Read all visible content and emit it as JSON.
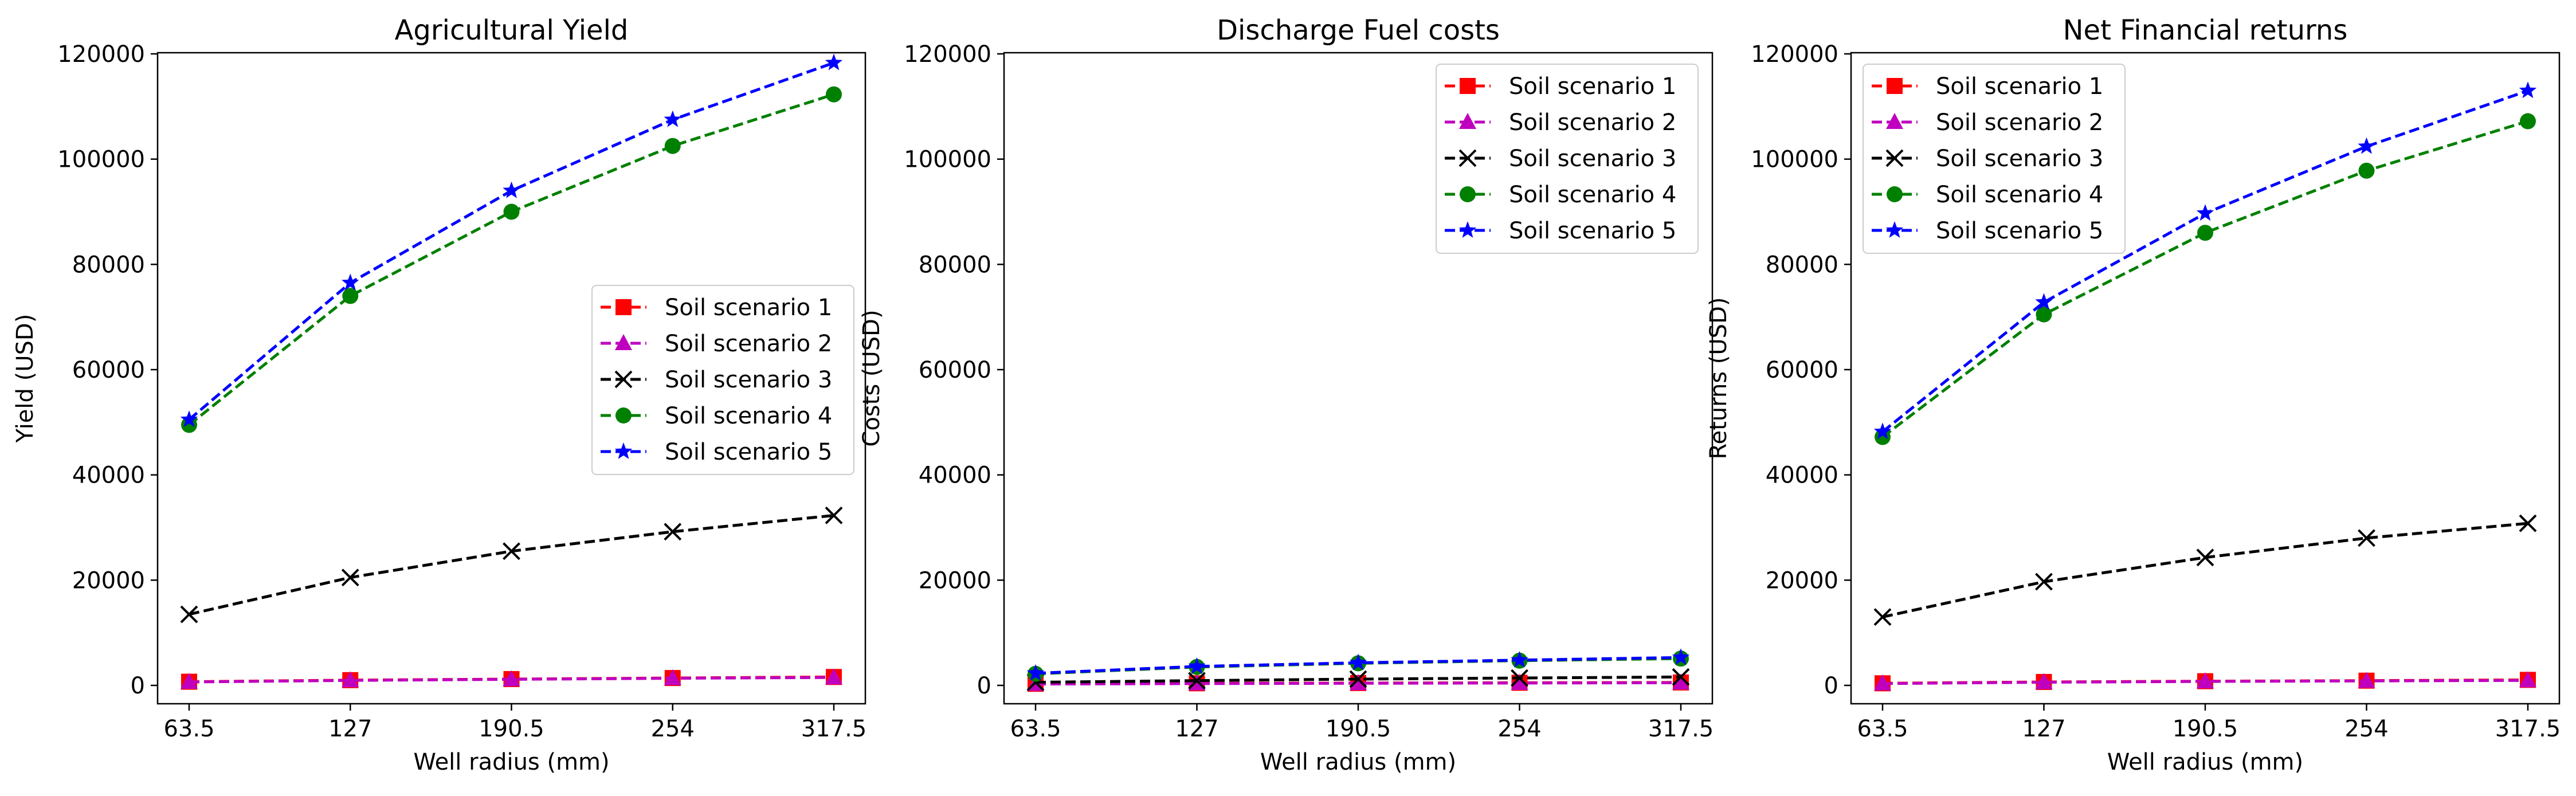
{
  "chart_data": [
    {
      "type": "line",
      "title": "Agricultural Yield",
      "xlabel": "Well radius (mm)",
      "ylabel": "Yield (USD)",
      "categories": [
        "63.5",
        "127",
        "190.5",
        "254",
        "317.5"
      ],
      "ylim": [
        0,
        120000
      ],
      "yticks": [
        "0",
        "20000",
        "40000",
        "60000",
        "80000",
        "100000",
        "120000"
      ],
      "legend_position": "center-right",
      "series": [
        {
          "name": "Soil scenario 1",
          "color": "#ff0000",
          "marker": "square",
          "values": [
            700,
            1000,
            1200,
            1400,
            1600
          ]
        },
        {
          "name": "Soil scenario 2",
          "color": "#bf00bf",
          "marker": "triangle",
          "values": [
            650,
            950,
            1150,
            1350,
            1500
          ]
        },
        {
          "name": "Soil scenario 3",
          "color": "#000000",
          "marker": "x",
          "values": [
            13500,
            20500,
            25500,
            29200,
            32300
          ]
        },
        {
          "name": "Soil scenario 4",
          "color": "#008000",
          "marker": "circle",
          "values": [
            49500,
            74000,
            90000,
            102500,
            112300
          ]
        },
        {
          "name": "Soil scenario 5",
          "color": "#0000ff",
          "marker": "star",
          "values": [
            50500,
            76500,
            94000,
            107500,
            118300
          ]
        }
      ]
    },
    {
      "type": "line",
      "title": "Discharge Fuel costs",
      "xlabel": "Well radius (mm)",
      "ylabel": "Costs (USD)",
      "categories": [
        "63.5",
        "127",
        "190.5",
        "254",
        "317.5"
      ],
      "ylim": [
        0,
        120000
      ],
      "yticks": [
        "0",
        "20000",
        "40000",
        "60000",
        "80000",
        "100000",
        "120000"
      ],
      "legend_position": "top-right",
      "series": [
        {
          "name": "Soil scenario 1",
          "color": "#ff0000",
          "marker": "square",
          "values": [
            300,
            400,
            450,
            500,
            550
          ]
        },
        {
          "name": "Soil scenario 2",
          "color": "#bf00bf",
          "marker": "triangle",
          "values": [
            250,
            350,
            400,
            450,
            500
          ]
        },
        {
          "name": "Soil scenario 3",
          "color": "#000000",
          "marker": "x",
          "values": [
            600,
            900,
            1200,
            1400,
            1600
          ]
        },
        {
          "name": "Soil scenario 4",
          "color": "#008000",
          "marker": "circle",
          "values": [
            2200,
            3500,
            4200,
            4700,
            5100
          ]
        },
        {
          "name": "Soil scenario 5",
          "color": "#0000ff",
          "marker": "star",
          "values": [
            2300,
            3600,
            4300,
            4800,
            5300
          ]
        }
      ]
    },
    {
      "type": "line",
      "title": "Net Financial returns",
      "xlabel": "Well radius (mm)",
      "ylabel": "Returns (USD)",
      "categories": [
        "63.5",
        "127",
        "190.5",
        "254",
        "317.5"
      ],
      "ylim": [
        0,
        120000
      ],
      "yticks": [
        "0",
        "20000",
        "40000",
        "60000",
        "80000",
        "100000",
        "120000"
      ],
      "legend_position": "top-left",
      "series": [
        {
          "name": "Soil scenario 1",
          "color": "#ff0000",
          "marker": "square",
          "values": [
            400,
            650,
            800,
            900,
            1050
          ]
        },
        {
          "name": "Soil scenario 2",
          "color": "#bf00bf",
          "marker": "triangle",
          "values": [
            350,
            600,
            750,
            850,
            950
          ]
        },
        {
          "name": "Soil scenario 3",
          "color": "#000000",
          "marker": "x",
          "values": [
            13000,
            19700,
            24300,
            28000,
            30800
          ]
        },
        {
          "name": "Soil scenario 4",
          "color": "#008000",
          "marker": "circle",
          "values": [
            47200,
            70500,
            86000,
            97800,
            107200
          ]
        },
        {
          "name": "Soil scenario 5",
          "color": "#0000ff",
          "marker": "star",
          "values": [
            48200,
            72800,
            89700,
            102400,
            113000
          ]
        }
      ]
    }
  ]
}
